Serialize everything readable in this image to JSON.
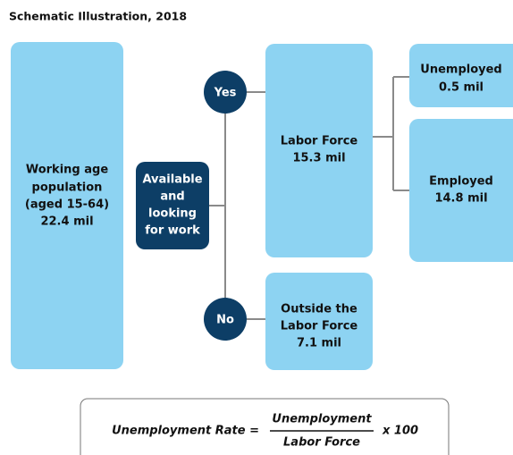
{
  "title": "Schematic Illustration, 2018",
  "nodes": [
    {
      "lines": [
        "Working age",
        "population",
        "(aged 15-64)",
        "22.4 mil"
      ]
    },
    {
      "lines": [
        "Available",
        "and",
        "looking",
        "for work"
      ]
    },
    {
      "lines": [
        "Yes"
      ]
    },
    {
      "lines": [
        "No"
      ]
    },
    {
      "lines": [
        "Labor Force",
        "15.3 mil"
      ]
    },
    {
      "lines": [
        "Outside the",
        "Labor Force",
        "7.1 mil"
      ]
    },
    {
      "lines": [
        "Unemployed",
        "0.5 mil"
      ]
    },
    {
      "lines": [
        "Employed",
        "14.8 mil"
      ]
    }
  ],
  "formula": {
    "left": "Unemployment Rate =",
    "numerator": "Unemployment",
    "denominator": "Labor Force",
    "right": "x 100"
  }
}
